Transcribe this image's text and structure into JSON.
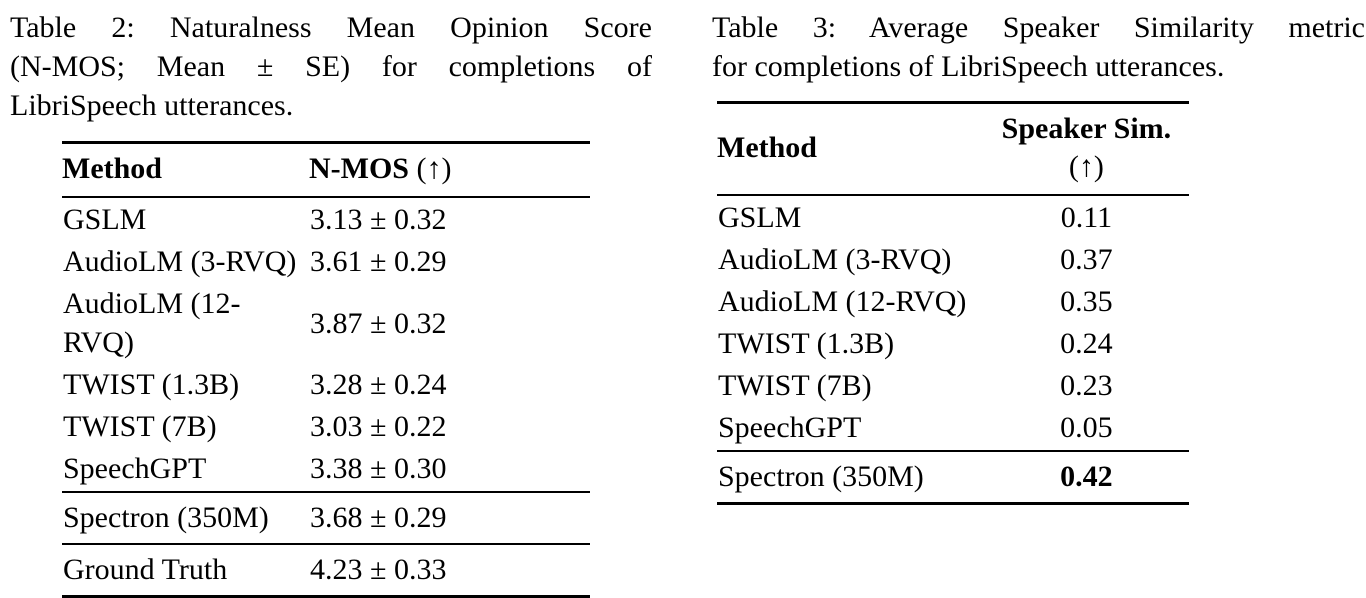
{
  "table2": {
    "caption_lines": [
      "Table 2: Naturalness Mean Opinion Score",
      "(N-MOS; Mean ± SE) for completions of",
      "LibriSpeech utterances."
    ],
    "header": {
      "method": "Method",
      "metric": "N-MOS",
      "suffix": "(↑)"
    },
    "rows": [
      {
        "method": "GSLM",
        "value": "3.13 ± 0.32"
      },
      {
        "method": "AudioLM (3-RVQ)",
        "value": "3.61 ± 0.29"
      },
      {
        "method": "AudioLM (12-RVQ)",
        "value": "3.87 ± 0.32"
      },
      {
        "method": "TWIST (1.3B)",
        "value": "3.28 ± 0.24"
      },
      {
        "method": "TWIST (7B)",
        "value": "3.03 ± 0.22"
      },
      {
        "method": "SpeechGPT",
        "value": "3.38 ± 0.30"
      }
    ],
    "spectron_row": {
      "method": "Spectron (350M)",
      "value": "3.68 ± 0.29"
    },
    "ground_truth_row": {
      "method": "Ground Truth",
      "value": "4.23 ± 0.33"
    }
  },
  "table3": {
    "caption_lines": [
      "Table 3: Average Speaker Similarity metric",
      "for completions of LibriSpeech utterances."
    ],
    "header": {
      "method": "Method",
      "metric": "Speaker Sim.",
      "suffix": "(↑)"
    },
    "rows": [
      {
        "method": "GSLM",
        "value": "0.11"
      },
      {
        "method": "AudioLM (3-RVQ)",
        "value": "0.37"
      },
      {
        "method": "AudioLM (12-RVQ)",
        "value": "0.35"
      },
      {
        "method": "TWIST (1.3B)",
        "value": "0.24"
      },
      {
        "method": "TWIST (7B)",
        "value": "0.23"
      },
      {
        "method": "SpeechGPT",
        "value": "0.05"
      }
    ],
    "spectron_row": {
      "method": "Spectron (350M)",
      "value": "0.42",
      "bold_value": true
    },
    "colors": {
      "text": "#000000",
      "background": "#ffffff",
      "rule": "#000000"
    }
  }
}
